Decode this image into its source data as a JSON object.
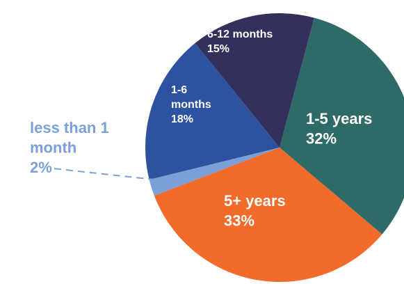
{
  "chart_data": {
    "type": "pie",
    "categories": [
      "1-5 years",
      "5+ years",
      "less than 1 month",
      "1-6 months",
      "6-12 months"
    ],
    "values": [
      32,
      33,
      2,
      18,
      15
    ],
    "value_labels": [
      "32%",
      "33%",
      "2%",
      "18%",
      "15%"
    ],
    "colors": [
      "#2e6b66",
      "#f26b2a",
      "#7b9fd8",
      "#2d52a0",
      "#33305e"
    ]
  }
}
